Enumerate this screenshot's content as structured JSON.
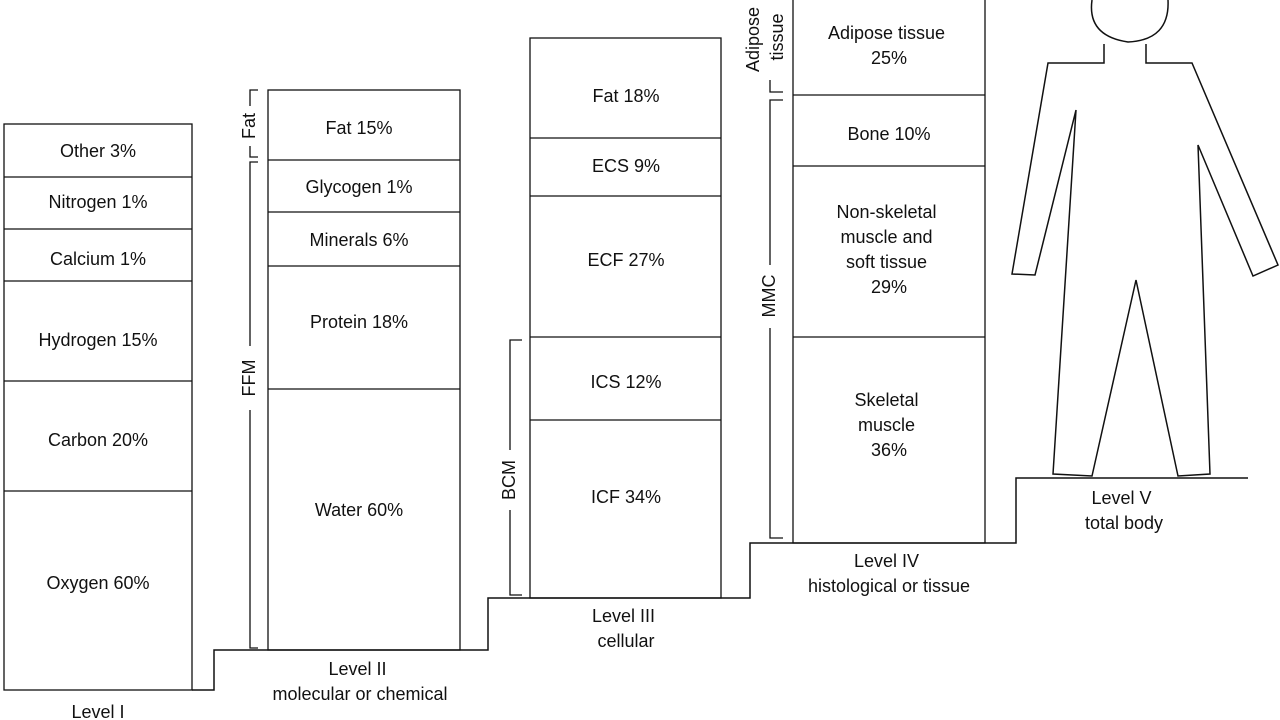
{
  "levels": [
    {
      "id": "level-1",
      "caption": [
        "Level I"
      ],
      "segments": [
        {
          "label": [
            "Other 3%"
          ]
        },
        {
          "label": [
            "Nitrogen 1%"
          ]
        },
        {
          "label": [
            "Calcium 1%"
          ]
        },
        {
          "label": [
            "Hydrogen 15%"
          ]
        },
        {
          "label": [
            "Carbon 20%"
          ]
        },
        {
          "label": [
            "Oxygen 60%"
          ]
        }
      ]
    },
    {
      "id": "level-2",
      "caption": [
        "Level II",
        "molecular or chemical"
      ],
      "segments": [
        {
          "label": [
            "Fat 15%"
          ]
        },
        {
          "label": [
            "Glycogen 1%"
          ]
        },
        {
          "label": [
            "Minerals 6%"
          ]
        },
        {
          "label": [
            "Protein 18%"
          ]
        },
        {
          "label": [
            "Water 60%"
          ]
        }
      ],
      "brackets": [
        {
          "label": "Fat"
        },
        {
          "label": "FFM"
        }
      ]
    },
    {
      "id": "level-3",
      "caption": [
        "Level III",
        "cellular"
      ],
      "segments": [
        {
          "label": [
            "Fat 18%"
          ]
        },
        {
          "label": [
            "ECS 9%"
          ]
        },
        {
          "label": [
            "ECF 27%"
          ]
        },
        {
          "label": [
            "ICS 12%"
          ]
        },
        {
          "label": [
            "ICF 34%"
          ]
        }
      ],
      "brackets": [
        {
          "label": "BCM"
        }
      ]
    },
    {
      "id": "level-4",
      "caption": [
        "Level IV",
        "histological or tissue"
      ],
      "segments": [
        {
          "label": [
            "Adipose tissue",
            "25%"
          ]
        },
        {
          "label": [
            "Bone 10%"
          ]
        },
        {
          "label": [
            "Non-skeletal",
            "muscle and",
            "soft tissue",
            "29%"
          ]
        },
        {
          "label": [
            "Skeletal",
            "muscle",
            "36%"
          ]
        }
      ],
      "brackets": [
        {
          "label": [
            "Adipose",
            "tissue"
          ]
        },
        {
          "label": "MMC"
        }
      ]
    },
    {
      "id": "level-5",
      "caption": [
        "Level V",
        "total body"
      ]
    }
  ]
}
